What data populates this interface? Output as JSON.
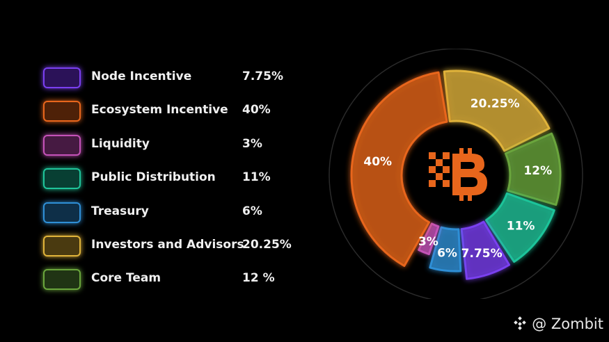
{
  "chart_data": {
    "type": "pie",
    "categories": [
      "Node Incentive",
      "Ecosystem Incentive",
      "Liquidity",
      "Public Distribution",
      "Treasury",
      "Investors and Advisors",
      "Core Team"
    ],
    "values": [
      7.75,
      40,
      3,
      11,
      6,
      20.25,
      12
    ],
    "value_labels": [
      "7.75%",
      "40%",
      "3%",
      "11%",
      "6%",
      "20.25%",
      "12 %"
    ],
    "slice_labels": [
      "7.75%",
      "40%",
      "3%",
      "11%",
      "6%",
      "20.25%",
      "12%"
    ],
    "colors": [
      "#7a3ff0",
      "#e8661c",
      "#c452b8",
      "#1fc49a",
      "#2f8fd6",
      "#e0b33a",
      "#6aa53c"
    ],
    "legend_placement": "left"
  },
  "watermark": {
    "text": "@ Zombit",
    "icon": "binance-square-logo"
  }
}
